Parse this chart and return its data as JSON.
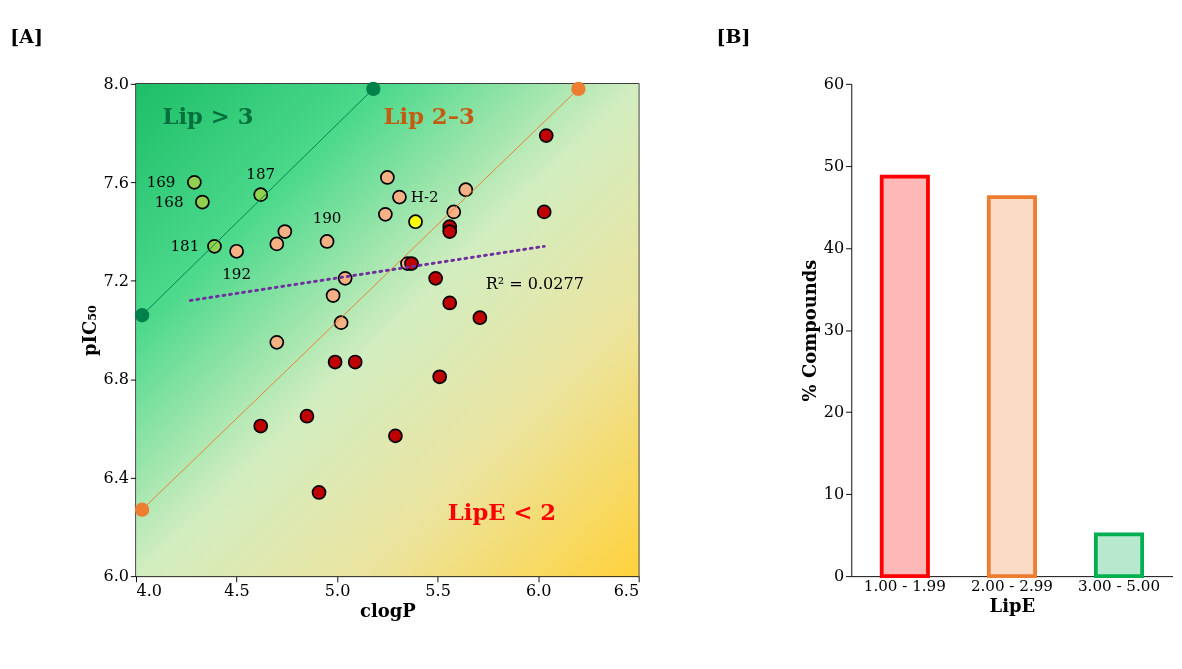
{
  "chart_data": [
    {
      "type": "scatter",
      "title": "[A]",
      "xlabel": "clogP",
      "ylabel": "pIC₅₀",
      "xlim": [
        4.0,
        6.5
      ],
      "xticks": [
        {
          "value": 4.0,
          "label": "4.0"
        },
        {
          "value": 4.5,
          "label": "4.5"
        },
        {
          "value": 5.0,
          "label": "5.0"
        },
        {
          "value": 5.5,
          "label": "5.5"
        },
        {
          "value": 6.0,
          "label": "6.0"
        },
        {
          "value": 6.5,
          "label": "6.5"
        }
      ],
      "ylim": [
        6.0,
        8.0
      ],
      "yticks": [
        {
          "value": 6.0,
          "label": "6.0"
        },
        {
          "value": 6.4,
          "label": "6.4"
        },
        {
          "value": 6.8,
          "label": "6.8"
        },
        {
          "value": 7.2,
          "label": "7.2"
        },
        {
          "value": 7.6,
          "label": "7.6"
        },
        {
          "value": 8.0,
          "label": "8.0"
        }
      ],
      "grid": false,
      "marker": "circle",
      "series": [
        {
          "type": "scatter",
          "color": "#92d050",
          "x": [
            4.29,
            4.33,
            4.62,
            4.39
          ],
          "values": [
            7.6,
            7.52,
            7.55,
            7.34
          ]
        },
        {
          "type": "scatter",
          "color": "#f4b183",
          "x": [
            4.5,
            4.74,
            4.7,
            4.95,
            5.04,
            4.98,
            5.02,
            4.7,
            5.25,
            5.31,
            5.24,
            5.64,
            5.58,
            5.35
          ],
          "values": [
            7.32,
            7.4,
            7.35,
            7.36,
            7.21,
            7.14,
            7.03,
            6.95,
            7.62,
            7.54,
            7.47,
            7.57,
            7.48,
            7.27
          ]
        },
        {
          "type": "scatter",
          "color": "#c00000",
          "x": [
            6.04,
            6.03,
            5.56,
            5.56,
            5.37,
            5.49,
            5.56,
            5.71,
            4.99,
            5.09,
            5.51,
            4.62,
            4.85,
            5.29,
            4.91
          ],
          "values": [
            7.79,
            7.48,
            7.42,
            7.4,
            7.27,
            7.21,
            7.11,
            7.05,
            6.87,
            6.87,
            6.81,
            6.61,
            6.65,
            6.57,
            6.34
          ]
        },
        {
          "type": "scatter",
          "color": "#ffff00",
          "x": [
            5.39
          ],
          "values": [
            7.44
          ]
        },
        {
          "type": "line",
          "color": "#00804a",
          "x": [
            4.03,
            5.18
          ],
          "values": [
            7.06,
            7.98
          ],
          "line_style": "solid",
          "marker": "circle"
        },
        {
          "type": "line",
          "color": "#ed7d31",
          "x": [
            4.03,
            6.2
          ],
          "values": [
            6.27,
            7.98
          ],
          "line_style": "solid",
          "marker": "circle"
        },
        {
          "type": "line",
          "color": "#7030a0",
          "x": [
            4.27,
            6.03
          ],
          "values": [
            7.12,
            7.34
          ],
          "line_style": "dotted",
          "marker": "none"
        }
      ],
      "annotations": [
        "Lip > 3",
        "Lip 2–3",
        "LipE < 2",
        "R² = 0.0277",
        {
          "text": "169",
          "x": 4.29,
          "y": 7.6
        },
        {
          "text": "168",
          "x": 4.33,
          "y": 7.52
        },
        {
          "text": "187",
          "x": 4.62,
          "y": 7.55
        },
        {
          "text": "181",
          "x": 4.39,
          "y": 7.34
        },
        {
          "text": "192",
          "x": 4.5,
          "y": 7.32
        },
        {
          "text": "190",
          "x": 4.95,
          "y": 7.36
        },
        {
          "text": "H-2",
          "x": 5.31,
          "y": 7.54
        }
      ]
    },
    {
      "type": "bar",
      "title": "[B]",
      "xlabel": "LipE",
      "ylabel": "% Compounds",
      "categories": [
        "1.00 - 1.99",
        "2.00 - 2.99",
        "3.00 - 5.00"
      ],
      "values": [
        48.7,
        46.2,
        5.1
      ],
      "colors": [
        "#ff0000",
        "#ed7d31",
        "#00b050"
      ],
      "ylim": [
        0,
        60
      ],
      "yticks": [
        0,
        10,
        20,
        30,
        40,
        50,
        60
      ],
      "grid": false
    }
  ]
}
